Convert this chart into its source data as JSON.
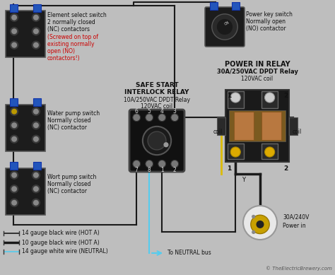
{
  "bg_color": "#bebebe",
  "label_element_switch": [
    "Element select switch",
    "2 normally closed",
    "(NC) contactors",
    "(Screwed on top of",
    "existing normally",
    "open (NO)",
    "contactors!)"
  ],
  "label_water_pump": [
    "Water pump switch",
    "Normally closed",
    "(NC) contactor"
  ],
  "label_wort_pump": [
    "Wort pump switch",
    "Normally closed",
    "(NC) contactor"
  ],
  "label_power_key": [
    "Power key switch",
    "Normally open",
    "(NO) contactor"
  ],
  "label_safe_start": [
    "SAFE START",
    "INTERLOCK RELAY",
    "10A/250VAC DPDT Relay",
    "120VAC coil"
  ],
  "label_power_in": [
    "POWER IN RELAY",
    "30A/250VAC DPDT Relay",
    "120VAC coil"
  ],
  "label_power_plug": [
    "30A/240V",
    "Power in"
  ],
  "label_neutral": "To NEUTRAL bus",
  "legend": [
    {
      "label": "14 gauge black wire (HOT A)",
      "color": "#1a1a1a",
      "lw": 1.2
    },
    {
      "label": "10 gauge black wire (HOT A)",
      "color": "#1a1a1a",
      "lw": 2.5
    },
    {
      "label": "14 gauge white wire (NEUTRAL)",
      "color": "#55ccee",
      "lw": 1.2
    }
  ],
  "red_text_color": "#cc0000",
  "black_text_color": "#111111",
  "wire_black": "#1a1a1a",
  "wire_cyan": "#55ccee",
  "wire_yellow": "#ddbb00",
  "copyright": "© TheElectricBrewery.com",
  "contactor_facecolor": "#1c1c1c",
  "contactor_edge": "#555555",
  "blue_connector": "#2255bb",
  "screw_outer": "#3a3a3a",
  "screw_inner": "#888888",
  "relay_socket_face": "#111111",
  "relay_socket_edge": "#444444",
  "power_relay_face": "#b8924a",
  "power_relay_edge": "#222222",
  "plug_outer": "#e8e8e8",
  "plug_inner": "#c8a000"
}
